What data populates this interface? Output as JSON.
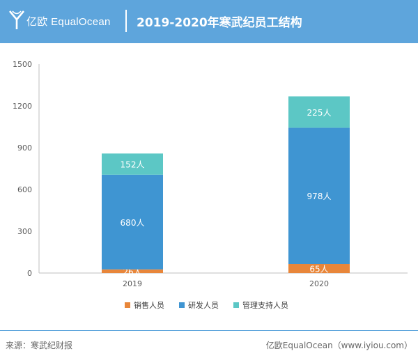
{
  "header": {
    "brand": "亿欧 EqualOcean",
    "title": "2019-2020年寒武纪员工结构"
  },
  "footer": {
    "source": "来源：寒武纪财报",
    "credit": "亿欧EqualOcean（www.iyiou.com）"
  },
  "colors": {
    "header_bg": "#5ea5dc",
    "sales": "#e8863a",
    "rd": "#3f95d2",
    "mgmt": "#5cc7c5"
  },
  "chart_data": {
    "type": "bar",
    "stacked": true,
    "title": "2019-2020年寒武纪员工结构",
    "categories": [
      "2019",
      "2020"
    ],
    "series": [
      {
        "name": "销售人员",
        "values": [
          26,
          65
        ],
        "labels": [
          "26人",
          "65人"
        ],
        "color": "#e8863a"
      },
      {
        "name": "研发人员",
        "values": [
          680,
          978
        ],
        "labels": [
          "680人",
          "978人"
        ],
        "color": "#3f95d2"
      },
      {
        "name": "管理支持人员",
        "values": [
          152,
          225
        ],
        "labels": [
          "152人",
          "225人"
        ],
        "color": "#5cc7c5"
      }
    ],
    "ylim": [
      0,
      1500
    ],
    "yticks": [
      "0",
      "300",
      "600",
      "900",
      "1200",
      "1500"
    ],
    "xlabel": "",
    "ylabel": "",
    "legend": "bottom"
  }
}
